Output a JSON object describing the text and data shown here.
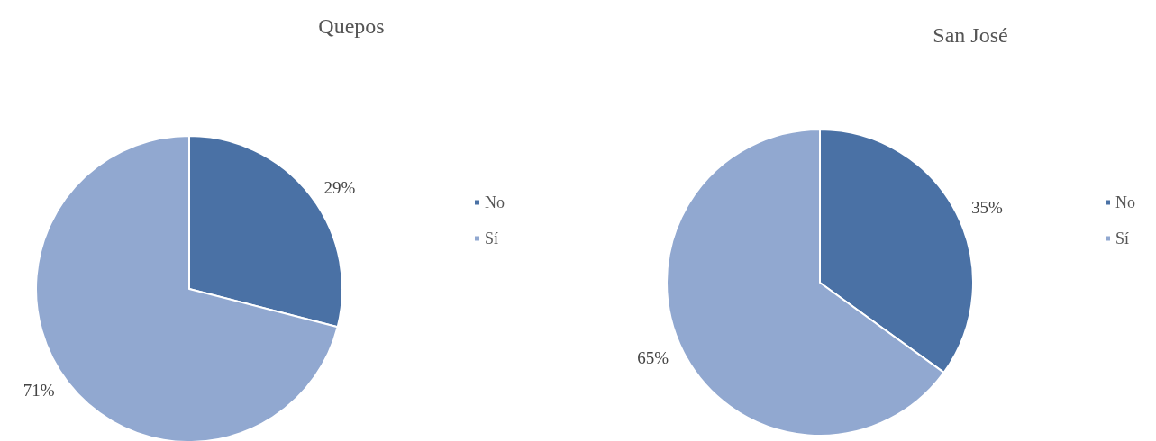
{
  "chart_data": [
    {
      "type": "pie",
      "title": "Quepos",
      "categories": [
        "No",
        "Sí"
      ],
      "values": [
        29,
        71
      ],
      "colors": [
        "#4a71a5",
        "#91a8d0"
      ],
      "value_labels": [
        "29%",
        "71%"
      ],
      "legend": "right"
    },
    {
      "type": "pie",
      "title": "San José",
      "categories": [
        "No",
        "Sí"
      ],
      "values": [
        35,
        65
      ],
      "colors": [
        "#4a71a5",
        "#91a8d0"
      ],
      "value_labels": [
        "35%",
        "65%"
      ],
      "legend": "right"
    }
  ]
}
